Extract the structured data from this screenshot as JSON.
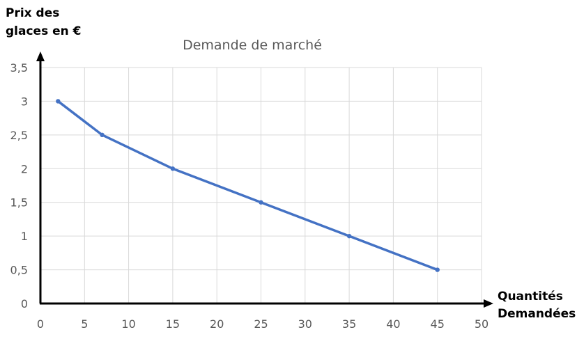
{
  "chart_data": {
    "type": "line",
    "title": "Demande de marché",
    "ylabel_lines": [
      "Prix des",
      "glaces en €"
    ],
    "xlabel_lines": [
      "Quantités",
      "Demandées"
    ],
    "xlim": [
      0,
      50
    ],
    "ylim": [
      0,
      3.5
    ],
    "x_ticks": [
      0,
      5,
      10,
      15,
      20,
      25,
      30,
      35,
      40,
      45,
      50
    ],
    "x_tick_labels": [
      "0",
      "5",
      "10",
      "15",
      "20",
      "25",
      "30",
      "35",
      "40",
      "45",
      "50"
    ],
    "y_ticks": [
      0,
      0.5,
      1,
      1.5,
      2,
      2.5,
      3,
      3.5
    ],
    "y_tick_labels": [
      "0",
      "0,5",
      "1",
      "1,5",
      "2",
      "2,5",
      "3",
      "3,5"
    ],
    "grid": true,
    "series": [
      {
        "name": "Demande de marché",
        "color": "#4472c4",
        "points": [
          {
            "x": 2,
            "y": 3
          },
          {
            "x": 7,
            "y": 2.5
          },
          {
            "x": 15,
            "y": 2
          },
          {
            "x": 25,
            "y": 1.5
          },
          {
            "x": 35,
            "y": 1
          },
          {
            "x": 45,
            "y": 0.5
          }
        ]
      }
    ],
    "colors": {
      "grid": "#d9d9d9",
      "axis": "#000000",
      "title": "#595959",
      "ticks": "#595959"
    }
  }
}
